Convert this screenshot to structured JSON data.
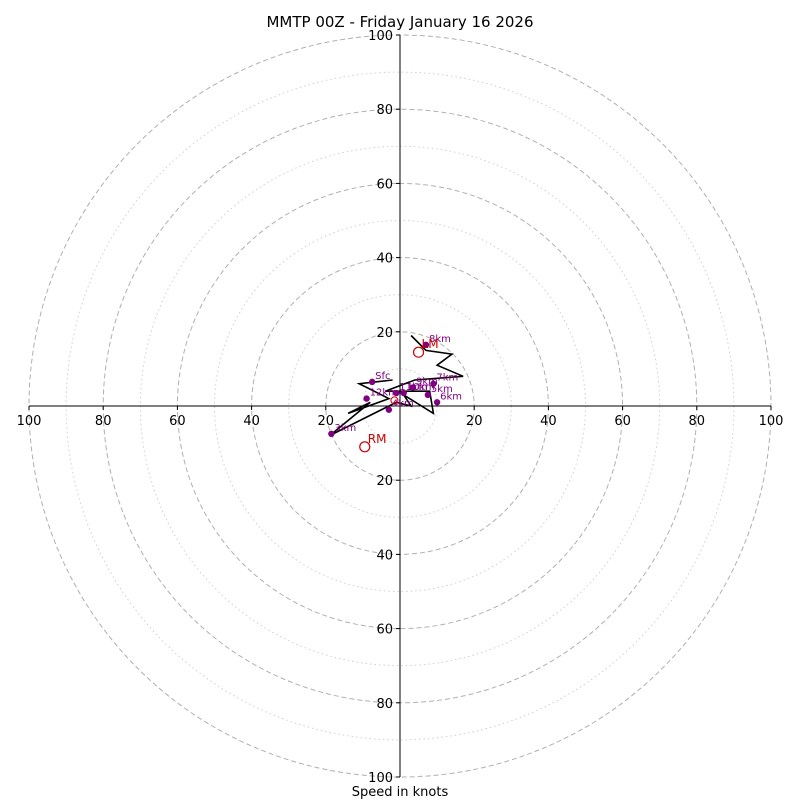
{
  "chart_data": {
    "type": "hodograph",
    "title": "MMTP 00Z - Friday January 16 2026",
    "xlabel": "Speed in knots",
    "range": [
      -100,
      100
    ],
    "ring_major": [
      20,
      40,
      60,
      80,
      100
    ],
    "ring_minor": [
      10,
      30,
      50,
      70,
      90
    ],
    "tick_labels": {
      "x_left": [
        "100",
        "80",
        "60",
        "40",
        "20"
      ],
      "x_right": [
        "20",
        "40",
        "60",
        "80",
        "100"
      ],
      "y_top": [
        "20",
        "40",
        "60",
        "80",
        "100"
      ],
      "y_bottom": [
        "20",
        "40",
        "60",
        "80",
        "100"
      ]
    },
    "trace": [
      [
        -2,
        7
      ],
      [
        -11,
        6
      ],
      [
        -3,
        2
      ],
      [
        -14,
        -2
      ],
      [
        -8,
        1
      ],
      [
        -19,
        -8
      ],
      [
        -9,
        -3
      ],
      [
        -1,
        1
      ],
      [
        3,
        0
      ],
      [
        1,
        3
      ],
      [
        9,
        -2
      ],
      [
        8,
        4
      ],
      [
        -4,
        4
      ],
      [
        4,
        7
      ],
      [
        17,
        8
      ],
      [
        10,
        11
      ],
      [
        14,
        14
      ],
      [
        7,
        15
      ],
      [
        3,
        19
      ]
    ],
    "heights": [
      {
        "label": "Sfc",
        "u": -7.5,
        "v": 6.5
      },
      {
        "label": "3km",
        "u": -18.5,
        "v": -7.5
      },
      {
        "label": "4km",
        "u": -3,
        "v": -1
      },
      {
        "label": "5km",
        "u": 7.5,
        "v": 3
      },
      {
        "label": "6km",
        "u": 10,
        "v": 1
      },
      {
        "label": "7km",
        "u": 9,
        "v": 6
      },
      {
        "label": "8km",
        "u": 7,
        "v": 16.5
      },
      {
        "label": "9km",
        "u": 3.5,
        "v": 5
      },
      {
        "label": "10km",
        "u": 1,
        "v": 3.5
      },
      {
        "label": "11km",
        "u": -1,
        "v": 3.5
      },
      {
        "label": "12km",
        "u": -9,
        "v": 2
      }
    ],
    "storm_motion": [
      {
        "label": "RM",
        "u": -9.5,
        "v": -11
      },
      {
        "label": "LM",
        "u": 5,
        "v": 14.5
      }
    ],
    "mean_marker": {
      "u": -1.5,
      "v": 1.5
    },
    "colors": {
      "trace": "#000000",
      "heights": "#800080",
      "storm_motion": "#cc0000",
      "grid": "#b0b0b0"
    }
  }
}
